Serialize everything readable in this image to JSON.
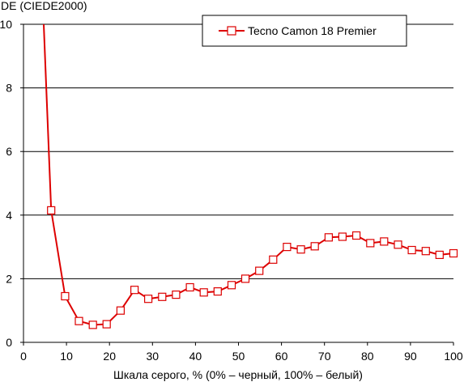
{
  "chart_data": {
    "type": "line",
    "title": "",
    "ylabel": "DE (CIEDE2000)",
    "xlabel": "Шкала серого, % (0% – черный, 100% – белый)",
    "xlim": [
      0,
      100
    ],
    "ylim": [
      0,
      10
    ],
    "xticks": [
      "0",
      "10",
      "20",
      "30",
      "40",
      "50",
      "60",
      "70",
      "80",
      "90",
      "100"
    ],
    "yticks": [
      "0",
      "2",
      "4",
      "6",
      "8",
      "10"
    ],
    "grid": "horizontal",
    "legend_position": "top-right",
    "series": [
      {
        "name": "Tecno Camon 18 Premier",
        "color": "#dd0000",
        "marker": "square",
        "x": [
          6.45,
          9.68,
          12.9,
          16.13,
          19.35,
          22.58,
          25.81,
          29.03,
          32.26,
          35.48,
          38.71,
          41.94,
          45.16,
          48.39,
          51.61,
          54.84,
          58.06,
          61.29,
          64.52,
          67.74,
          70.97,
          74.19,
          77.42,
          80.65,
          83.87,
          87.1,
          90.32,
          93.55,
          96.77,
          100
        ],
        "y": [
          4.15,
          1.45,
          0.67,
          0.55,
          0.57,
          1.0,
          1.65,
          1.37,
          1.43,
          1.5,
          1.73,
          1.57,
          1.6,
          1.8,
          2.0,
          2.25,
          2.6,
          3.0,
          2.92,
          3.02,
          3.3,
          3.32,
          3.36,
          3.12,
          3.17,
          3.07,
          2.9,
          2.87,
          2.75,
          2.8
        ],
        "offscale_start": [
          4.7,
          10
        ]
      }
    ]
  }
}
